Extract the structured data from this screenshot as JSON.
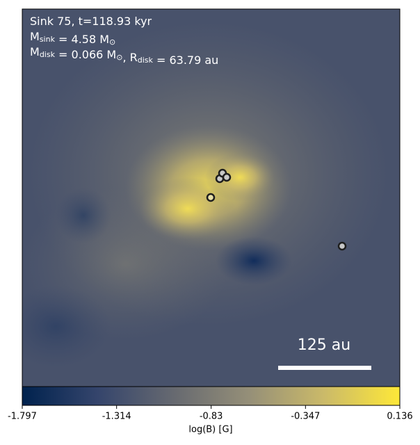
{
  "chart_data": {
    "type": "image",
    "annotation_lines": [
      [
        {
          "text": "Sink 75, t=118.93 kyr"
        }
      ],
      [
        {
          "text": "M"
        },
        {
          "sub": "sink"
        },
        {
          "text": " = 4.58 M"
        },
        {
          "sub": "⊙"
        }
      ],
      [
        {
          "text": "M"
        },
        {
          "sub": "disk"
        },
        {
          "text": " = 0.066 M"
        },
        {
          "sub": "⊙"
        },
        {
          "text": ", R"
        },
        {
          "sub": "disk"
        },
        {
          "text": " = 63.79 au"
        }
      ]
    ],
    "scale_bar_label": "125 au",
    "colorbar": {
      "label": "log(B) [G]",
      "clim": [
        -1.797,
        0.136
      ],
      "ticks": [
        -1.797,
        -1.314,
        -0.83,
        -0.347,
        0.136
      ],
      "colormap": [
        "#00224e",
        "#35456c",
        "#666970",
        "#958f78",
        "#cbba69",
        "#fee838"
      ]
    }
  }
}
